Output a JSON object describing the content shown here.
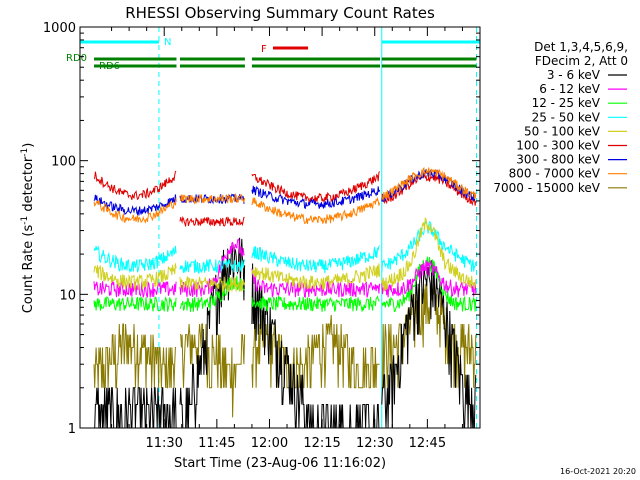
{
  "chart_data": {
    "type": "line",
    "title": "RHESSI Observing Summary Count Rates",
    "xlabel": "Start Time (23-Aug-06 11:16:02)",
    "ylabel_main": "Count Rate (s",
    "ylabel_sup1": "-1",
    "ylabel_mid": " detector",
    "ylabel_sup2": "-1",
    "ylabel_end": ")",
    "yscale": "log",
    "ylim": [
      1,
      1000
    ],
    "y_ticks": [
      {
        "value": 1,
        "label": "1"
      },
      {
        "value": 10,
        "label": "10"
      },
      {
        "value": 100,
        "label": "100"
      },
      {
        "value": 1000,
        "label": "1000"
      }
    ],
    "x_range_minutes": [
      -10,
      104
    ],
    "x_ticks": [
      {
        "value": 14,
        "label": "11:30"
      },
      {
        "value": 29,
        "label": "11:45"
      },
      {
        "value": 44,
        "label": "12:00"
      },
      {
        "value": 59,
        "label": "12:15"
      },
      {
        "value": 74,
        "label": "12:30"
      },
      {
        "value": 89,
        "label": "12:45"
      }
    ],
    "legend_header": [
      "Det 1,3,4,5,6,9,",
      "FDecim 2, Att 0"
    ],
    "legend_position": "right",
    "series": [
      {
        "name": "3 - 6 keV",
        "color": "#000000"
      },
      {
        "name": "6 - 12 keV",
        "color": "#ff00ff"
      },
      {
        "name": "12 - 25 keV",
        "color": "#00ff00"
      },
      {
        "name": "25 - 50 keV",
        "color": "#00ffff"
      },
      {
        "name": "50 - 100 keV",
        "color": "#d0d020"
      },
      {
        "name": "100 - 300 keV",
        "color": "#e00000"
      },
      {
        "name": "300 - 800 keV",
        "color": "#0000e0"
      },
      {
        "name": "800 - 7000 keV",
        "color": "#ff8000"
      },
      {
        "name": "7000 - 15000 keV",
        "color": "#8a7a00"
      }
    ],
    "flags": [
      {
        "label": "N",
        "color": "#00ffff",
        "segments": [
          [
            -10,
            12.5
          ],
          [
            76,
            104
          ]
        ]
      },
      {
        "label": "F",
        "color": "#e00000",
        "segments": [
          [
            45,
            55
          ]
        ]
      },
      {
        "label": "RD0",
        "color": "#008000",
        "segments": [
          [
            -6,
            17.5
          ],
          [
            18.5,
            37
          ],
          [
            39,
            75.5
          ],
          [
            76,
            103
          ]
        ]
      },
      {
        "label": "RD6",
        "color": "#008000",
        "segments": [
          [
            -6,
            17.5
          ],
          [
            18.5,
            37
          ],
          [
            39,
            75.5
          ],
          [
            76,
            103
          ]
        ]
      }
    ],
    "night_markers_minutes": [
      -10,
      12.5,
      76,
      103
    ],
    "footer_date": "16-Oct-2021 20:20"
  }
}
